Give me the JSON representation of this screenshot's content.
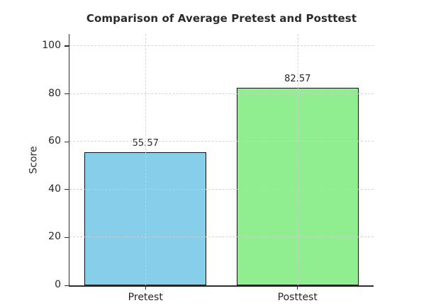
{
  "chart_data": {
    "type": "bar",
    "title": "Comparison of Average Pretest and Posttest",
    "xlabel": "",
    "ylabel": "Score",
    "categories": [
      "Pretest",
      "Posttest"
    ],
    "values": [
      55.57,
      82.57
    ],
    "value_labels": [
      "55.57",
      "82.57"
    ],
    "bar_colors": [
      "#87CEEB",
      "#90EE90"
    ],
    "bar_edge_color": "#111111",
    "yticks": [
      0,
      20,
      40,
      60,
      80,
      100
    ],
    "ylim": [
      0,
      105
    ],
    "grid": "dashed, light gray, drawn above bars",
    "grid_color": "#cfcfcf",
    "background_color": "#ffffff",
    "spines": "left and bottom only",
    "legend": "none"
  }
}
